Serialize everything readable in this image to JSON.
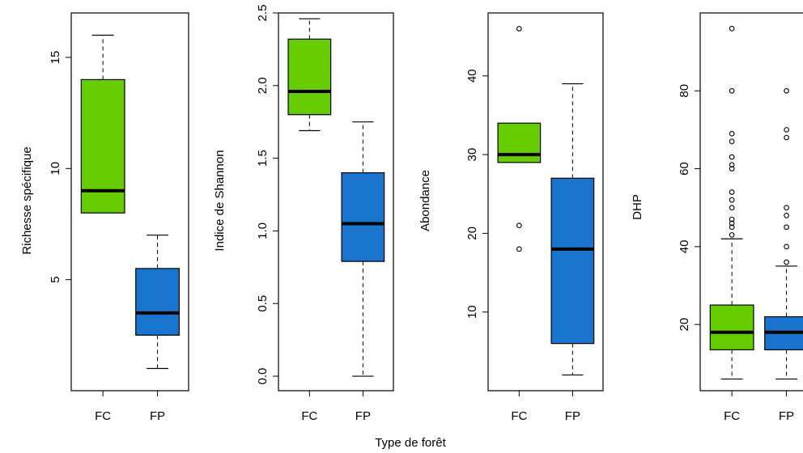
{
  "figure": {
    "xlabel": "Type de forêt"
  },
  "colors": {
    "FC": "#66cc00",
    "FP": "#1874cd"
  },
  "chart_data": [
    {
      "type": "box",
      "ylabel": "Richesse spécifique",
      "ylim": [
        0,
        17
      ],
      "ticks": [
        5,
        10,
        15
      ],
      "categories": [
        "FC",
        "FP"
      ],
      "boxes": [
        {
          "name": "FC",
          "min": 8,
          "q1": 8,
          "median": 9,
          "q3": 14,
          "max": 16,
          "outliers": []
        },
        {
          "name": "FP",
          "min": 1,
          "q1": 2.5,
          "median": 3.5,
          "q3": 5.5,
          "max": 7,
          "outliers": []
        }
      ]
    },
    {
      "type": "box",
      "ylabel": "Indice de Shannon",
      "ylim": [
        -0.1,
        2.5
      ],
      "ticks": [
        0.0,
        0.5,
        1.0,
        1.5,
        2.0,
        2.5
      ],
      "categories": [
        "FC",
        "FP"
      ],
      "boxes": [
        {
          "name": "FC",
          "min": 1.69,
          "q1": 1.8,
          "median": 1.96,
          "q3": 2.32,
          "max": 2.46,
          "outliers": []
        },
        {
          "name": "FP",
          "min": 0.0,
          "q1": 0.79,
          "median": 1.05,
          "q3": 1.4,
          "max": 1.75,
          "outliers": []
        }
      ]
    },
    {
      "type": "box",
      "ylabel": "Abondance",
      "ylim": [
        0,
        48
      ],
      "ticks": [
        10,
        20,
        30,
        40
      ],
      "categories": [
        "FC",
        "FP"
      ],
      "boxes": [
        {
          "name": "FC",
          "min": 29,
          "q1": 29,
          "median": 30,
          "q3": 34,
          "max": 34,
          "outliers": [
            46,
            21,
            18
          ]
        },
        {
          "name": "FP",
          "min": 2,
          "q1": 6,
          "median": 18,
          "q3": 27,
          "max": 39,
          "outliers": []
        }
      ]
    },
    {
      "type": "box",
      "ylabel": "DHP",
      "ylim": [
        3,
        100
      ],
      "ticks": [
        20,
        40,
        60,
        80
      ],
      "categories": [
        "FC",
        "FP"
      ],
      "boxes": [
        {
          "name": "FC",
          "min": 6,
          "q1": 13.5,
          "median": 18,
          "q3": 25,
          "max": 42,
          "outliers": [
            96,
            80,
            69,
            67,
            63,
            61,
            60,
            54,
            52,
            50,
            47,
            46,
            45,
            43
          ]
        },
        {
          "name": "FP",
          "min": 6,
          "q1": 13.5,
          "median": 18,
          "q3": 22,
          "max": 35,
          "outliers": [
            80,
            70,
            68,
            50,
            48,
            45,
            40,
            36
          ]
        }
      ]
    }
  ]
}
